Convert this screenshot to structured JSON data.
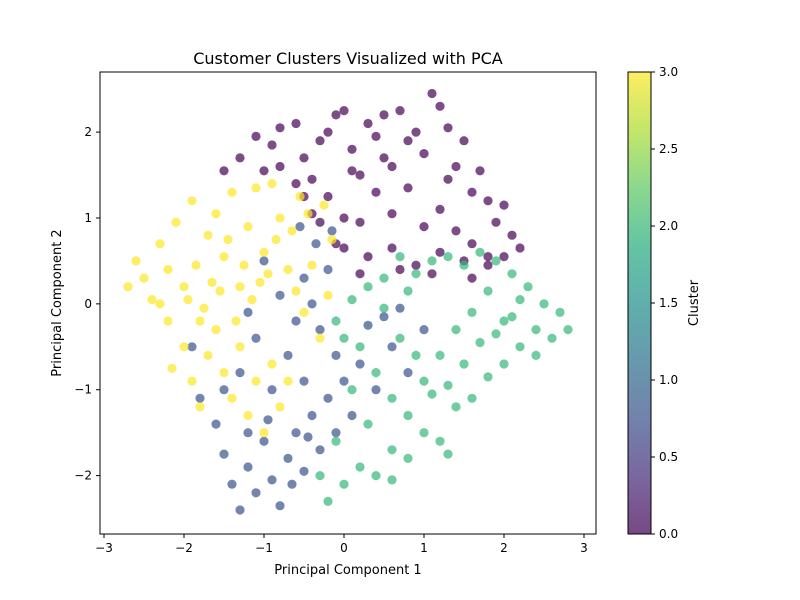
{
  "chart_data": {
    "type": "scatter",
    "title": "Customer Clusters Visualized with PCA",
    "xlabel": "Principal Component 1",
    "ylabel": "Principal Component 2",
    "xlim": [
      -3.05,
      3.15
    ],
    "ylim": [
      -2.68,
      2.7
    ],
    "xticks": [
      -3,
      -2,
      -1,
      0,
      1,
      2,
      3
    ],
    "yticks": [
      -2,
      -1,
      0,
      1,
      2
    ],
    "grid": false,
    "marker_alpha": 0.7,
    "colorbar": {
      "label": "Cluster",
      "range": [
        0.0,
        3.0
      ],
      "ticks": [
        0.0,
        0.5,
        1.0,
        1.5,
        2.0,
        2.5,
        3.0
      ],
      "tick_labels": [
        "0.0",
        "0.5",
        "1.0",
        "1.5",
        "2.0",
        "2.5",
        "3.0"
      ],
      "colormap": "viridis",
      "colormap_stops": [
        "#440154",
        "#472d7b",
        "#3b528b",
        "#2c728e",
        "#21918c",
        "#28ae80",
        "#5ec962",
        "#addc30",
        "#fde725"
      ]
    },
    "series": [
      {
        "cluster": 0,
        "color": "#440154",
        "points": [
          [
            -1.5,
            1.55
          ],
          [
            -1.3,
            1.7
          ],
          [
            -1.1,
            1.95
          ],
          [
            -1.0,
            1.55
          ],
          [
            -0.9,
            1.85
          ],
          [
            -0.8,
            2.05
          ],
          [
            -0.6,
            2.1
          ],
          [
            -0.5,
            1.7
          ],
          [
            -0.4,
            1.45
          ],
          [
            -0.3,
            1.9
          ],
          [
            -0.2,
            2.0
          ],
          [
            -0.1,
            2.2
          ],
          [
            0.0,
            2.25
          ],
          [
            0.1,
            1.8
          ],
          [
            0.2,
            1.5
          ],
          [
            0.3,
            2.1
          ],
          [
            0.4,
            1.95
          ],
          [
            0.5,
            2.2
          ],
          [
            0.6,
            1.6
          ],
          [
            0.7,
            2.25
          ],
          [
            0.8,
            1.9
          ],
          [
            0.9,
            2.0
          ],
          [
            1.0,
            1.75
          ],
          [
            1.1,
            2.45
          ],
          [
            1.2,
            2.3
          ],
          [
            1.3,
            2.05
          ],
          [
            1.4,
            1.6
          ],
          [
            1.5,
            1.9
          ],
          [
            1.6,
            1.3
          ],
          [
            1.7,
            1.55
          ],
          [
            1.8,
            1.2
          ],
          [
            1.9,
            0.95
          ],
          [
            2.0,
            1.15
          ],
          [
            2.1,
            0.8
          ],
          [
            2.2,
            0.65
          ],
          [
            -0.6,
            1.4
          ],
          [
            -0.4,
            1.05
          ],
          [
            -0.2,
            1.25
          ],
          [
            0.0,
            1.0
          ],
          [
            0.2,
            0.95
          ],
          [
            0.4,
            1.3
          ],
          [
            0.6,
            1.05
          ],
          [
            0.8,
            1.35
          ],
          [
            1.0,
            0.9
          ],
          [
            1.2,
            1.1
          ],
          [
            1.4,
            0.85
          ],
          [
            1.6,
            0.7
          ],
          [
            1.8,
            0.55
          ],
          [
            0.3,
            0.55
          ],
          [
            0.6,
            0.65
          ],
          [
            0.9,
            0.45
          ],
          [
            1.2,
            0.6
          ],
          [
            1.5,
            0.5
          ],
          [
            1.8,
            0.45
          ],
          [
            0.0,
            0.65
          ],
          [
            -0.3,
            0.95
          ],
          [
            0.5,
            1.7
          ],
          [
            0.1,
            1.55
          ],
          [
            -0.8,
            1.6
          ],
          [
            1.3,
            1.45
          ],
          [
            -0.1,
            0.7
          ],
          [
            0.2,
            0.35
          ],
          [
            0.7,
            0.4
          ],
          [
            1.1,
            0.35
          ],
          [
            1.6,
            0.3
          ],
          [
            2.0,
            0.55
          ],
          [
            -0.5,
            1.25
          ]
        ]
      },
      {
        "cluster": 1,
        "color": "#3b528b",
        "points": [
          [
            -1.9,
            -0.5
          ],
          [
            -1.8,
            -1.1
          ],
          [
            -1.6,
            -1.4
          ],
          [
            -1.5,
            -1.75
          ],
          [
            -1.4,
            -2.1
          ],
          [
            -1.3,
            -2.4
          ],
          [
            -1.2,
            -1.9
          ],
          [
            -1.1,
            -2.2
          ],
          [
            -1.0,
            -1.6
          ],
          [
            -0.9,
            -2.05
          ],
          [
            -0.8,
            -2.35
          ],
          [
            -0.7,
            -1.8
          ],
          [
            -0.6,
            -1.5
          ],
          [
            -0.5,
            -1.95
          ],
          [
            -0.4,
            -1.3
          ],
          [
            -0.3,
            -1.7
          ],
          [
            -0.2,
            -1.1
          ],
          [
            -0.1,
            -1.5
          ],
          [
            0.0,
            -0.9
          ],
          [
            0.1,
            -1.3
          ],
          [
            0.2,
            -0.7
          ],
          [
            0.4,
            -1.0
          ],
          [
            0.6,
            -0.5
          ],
          [
            0.8,
            -0.8
          ],
          [
            1.0,
            -0.3
          ],
          [
            -1.3,
            -0.8
          ],
          [
            -1.1,
            -0.4
          ],
          [
            -0.9,
            -1.0
          ],
          [
            -0.7,
            -0.6
          ],
          [
            -0.5,
            -0.9
          ],
          [
            -0.3,
            -0.3
          ],
          [
            -0.1,
            -0.6
          ],
          [
            -1.5,
            -1.0
          ],
          [
            -0.2,
            0.4
          ],
          [
            -0.5,
            0.3
          ],
          [
            -0.8,
            0.1
          ],
          [
            -1.0,
            0.5
          ],
          [
            -1.2,
            -0.1
          ],
          [
            0.3,
            -0.25
          ],
          [
            0.7,
            -0.05
          ],
          [
            0.5,
            -0.15
          ],
          [
            -0.4,
            0.0
          ],
          [
            -0.6,
            -0.2
          ],
          [
            -0.35,
            0.7
          ],
          [
            -0.15,
            0.85
          ],
          [
            -0.55,
            0.9
          ],
          [
            -1.2,
            -1.5
          ],
          [
            -0.95,
            -1.35
          ],
          [
            -0.65,
            -2.1
          ],
          [
            -0.45,
            -1.55
          ]
        ]
      },
      {
        "cluster": 2,
        "color": "#35b779",
        "points": [
          [
            0.0,
            -2.1
          ],
          [
            0.2,
            -1.9
          ],
          [
            0.4,
            -2.0
          ],
          [
            0.6,
            -1.7
          ],
          [
            0.8,
            -1.8
          ],
          [
            1.0,
            -1.5
          ],
          [
            1.2,
            -1.6
          ],
          [
            1.4,
            -1.2
          ],
          [
            1.6,
            -1.1
          ],
          [
            1.8,
            -0.85
          ],
          [
            2.0,
            -0.7
          ],
          [
            2.2,
            -0.5
          ],
          [
            2.4,
            -0.3
          ],
          [
            2.6,
            -0.4
          ],
          [
            2.8,
            -0.3
          ],
          [
            2.5,
            0.0
          ],
          [
            2.3,
            0.2
          ],
          [
            2.1,
            0.35
          ],
          [
            1.9,
            0.5
          ],
          [
            1.7,
            0.6
          ],
          [
            1.5,
            0.45
          ],
          [
            1.3,
            0.55
          ],
          [
            1.1,
            0.5
          ],
          [
            0.9,
            0.35
          ],
          [
            0.7,
            0.55
          ],
          [
            0.5,
            0.3
          ],
          [
            0.3,
            0.2
          ],
          [
            0.1,
            0.05
          ],
          [
            -0.1,
            -0.2
          ],
          [
            0.2,
            -0.5
          ],
          [
            0.4,
            -0.8
          ],
          [
            0.6,
            -1.1
          ],
          [
            0.8,
            -1.3
          ],
          [
            1.0,
            -0.9
          ],
          [
            1.2,
            -0.6
          ],
          [
            1.4,
            -0.3
          ],
          [
            1.6,
            -0.1
          ],
          [
            1.8,
            0.15
          ],
          [
            2.0,
            -0.2
          ],
          [
            2.2,
            0.05
          ],
          [
            0.5,
            -0.05
          ],
          [
            0.7,
            -0.4
          ],
          [
            0.9,
            -0.6
          ],
          [
            1.1,
            -1.05
          ],
          [
            1.3,
            -0.95
          ],
          [
            1.5,
            -0.7
          ],
          [
            1.7,
            -0.45
          ],
          [
            1.9,
            -0.35
          ],
          [
            2.1,
            -0.15
          ],
          [
            2.4,
            -0.6
          ],
          [
            0.3,
            -1.4
          ],
          [
            0.1,
            -1.0
          ],
          [
            -0.1,
            -1.6
          ],
          [
            -0.3,
            -2.0
          ],
          [
            -0.2,
            -2.3
          ],
          [
            0.6,
            -2.05
          ],
          [
            1.3,
            -1.75
          ],
          [
            2.7,
            -0.1
          ],
          [
            0.0,
            -0.4
          ],
          [
            0.8,
            0.15
          ]
        ]
      },
      {
        "cluster": 3,
        "color": "#fde725",
        "points": [
          [
            -2.7,
            0.2
          ],
          [
            -2.6,
            0.5
          ],
          [
            -2.5,
            0.3
          ],
          [
            -2.4,
            0.05
          ],
          [
            -2.3,
            0.7
          ],
          [
            -2.2,
            0.4
          ],
          [
            -2.1,
            0.95
          ],
          [
            -2.0,
            0.2
          ],
          [
            -1.9,
            1.2
          ],
          [
            -1.8,
            -0.2
          ],
          [
            -1.7,
            0.8
          ],
          [
            -1.6,
            1.05
          ],
          [
            -1.5,
            0.55
          ],
          [
            -1.4,
            1.3
          ],
          [
            -1.3,
            0.2
          ],
          [
            -1.2,
            0.9
          ],
          [
            -1.1,
            1.35
          ],
          [
            -1.0,
            0.6
          ],
          [
            -0.9,
            1.4
          ],
          [
            -0.8,
            1.0
          ],
          [
            -0.7,
            0.4
          ],
          [
            -0.6,
            0.15
          ],
          [
            -0.5,
            -0.1
          ],
          [
            -0.4,
            0.45
          ],
          [
            -0.3,
            -0.4
          ],
          [
            -0.2,
            0.1
          ],
          [
            -2.0,
            -0.5
          ],
          [
            -1.9,
            -0.9
          ],
          [
            -1.8,
            -1.2
          ],
          [
            -1.7,
            -0.6
          ],
          [
            -1.6,
            -0.3
          ],
          [
            -1.5,
            -0.8
          ],
          [
            -1.4,
            -1.1
          ],
          [
            -1.3,
            -0.5
          ],
          [
            -1.2,
            -1.3
          ],
          [
            -1.1,
            -0.9
          ],
          [
            -1.0,
            -1.5
          ],
          [
            -0.9,
            -0.7
          ],
          [
            -0.8,
            -1.2
          ],
          [
            -0.7,
            -0.9
          ],
          [
            -2.2,
            -0.2
          ],
          [
            -2.3,
            0.0
          ],
          [
            -1.85,
            0.45
          ],
          [
            -1.65,
            0.25
          ],
          [
            -1.45,
            0.75
          ],
          [
            -1.25,
            0.45
          ],
          [
            -1.05,
            0.25
          ],
          [
            -0.85,
            0.75
          ],
          [
            -0.65,
            0.85
          ],
          [
            -0.45,
            1.05
          ],
          [
            -0.25,
            1.15
          ],
          [
            -0.55,
            1.25
          ],
          [
            -0.15,
            0.75
          ],
          [
            -2.15,
            -0.75
          ],
          [
            -1.95,
            0.05
          ],
          [
            -1.75,
            -0.05
          ],
          [
            -1.55,
            0.15
          ],
          [
            -1.35,
            -0.2
          ],
          [
            -1.15,
            0.05
          ],
          [
            -0.95,
            0.35
          ]
        ]
      }
    ]
  }
}
